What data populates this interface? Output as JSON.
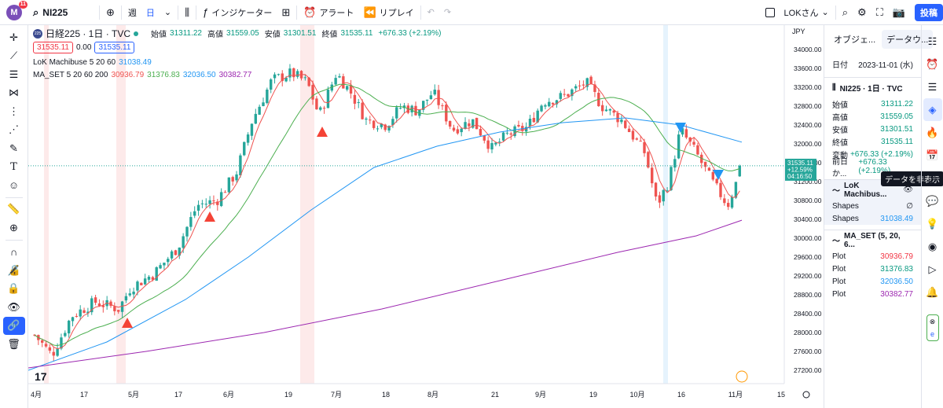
{
  "toolbar": {
    "logo_letter": "M",
    "notification_count": "11",
    "symbol": "NI225",
    "interval_week": "週",
    "interval_day": "日",
    "indicators_label": "インジケーター",
    "alert_label": "アラート",
    "replay_label": "リプレイ",
    "account_label": "LOKさん",
    "post_label": "投稿"
  },
  "legend": {
    "logo_text": "225",
    "title": "日経225 · 1日 · TVC",
    "open_label": "始値",
    "open": "31311.22",
    "high_label": "高値",
    "high": "31559.05",
    "low_label": "安値",
    "low": "31301.51",
    "close_label": "終値",
    "close": "31535.11",
    "change": "+676.33 (+2.19%)",
    "sell_price": "31535.11",
    "spread": "0.00",
    "buy_price": "31535.11",
    "ind1_name": "LoK Machibuse 5 20 60",
    "ind1_value": "31038.49",
    "ind2_name": "MA_SET 5 20 60 200",
    "ind2_v1": "30936.79",
    "ind2_v2": "31376.83",
    "ind2_v3": "32036.50",
    "ind2_v4": "30382.77"
  },
  "price_axis": {
    "currency": "JPY",
    "current_price": "31535.11",
    "current_change": "+12.59%",
    "countdown": "04:16:50"
  },
  "colors": {
    "up": "#26a69a",
    "down": "#ef5350",
    "ma5": "#ef5350",
    "ma20": "#4caf50",
    "ma60": "#2196f3",
    "ma200": "#9c27b0"
  },
  "chart_data": {
    "type": "candlestick",
    "title": "日経225 · 1日 · TVC",
    "ylim": [
      27000,
      34200
    ],
    "y_ticks": [
      "34000.00",
      "33600.00",
      "33200.00",
      "32800.00",
      "32400.00",
      "32000.00",
      "31600.00",
      "31200.00",
      "30800.00",
      "30400.00",
      "30000.00",
      "29600.00",
      "29200.00",
      "28800.00",
      "28400.00",
      "28000.00",
      "27600.00",
      "27200.00"
    ],
    "x_ticks": [
      "4月",
      "17",
      "5月",
      "17",
      "6月",
      "19",
      "7月",
      "18",
      "8月",
      "21",
      "9月",
      "19",
      "10月",
      "16",
      "11月",
      "15"
    ],
    "last_close": 31535.11,
    "series": [
      {
        "name": "LoK Machibuse",
        "value": 31038.49
      },
      {
        "name": "MA 5",
        "value": 30936.79
      },
      {
        "name": "MA 20",
        "value": 31376.83
      },
      {
        "name": "MA 60",
        "value": 32036.5
      },
      {
        "name": "MA 200",
        "value": 30382.77
      }
    ],
    "grid": false
  },
  "data_window": {
    "tab_objects": "オブジェ...",
    "tab_data": "データウ...",
    "date_label": "日付",
    "date_value": "2023-11-01 (水)",
    "symbol_line": "NI225 · 1日 · TVC",
    "rows": [
      {
        "label": "始値",
        "value": "31311.22"
      },
      {
        "label": "高値",
        "value": "31559.05"
      },
      {
        "label": "安値",
        "value": "31301.51"
      },
      {
        "label": "終値",
        "value": "31535.11"
      },
      {
        "label": "変動",
        "value": "+676.33 (+2.19%)"
      },
      {
        "label": "前日か...",
        "value": "+676.33 (+2.19%)"
      }
    ],
    "ind1_header": "LoK Machibus...",
    "ind1_rows": [
      {
        "label": "Shapes",
        "value": "∅"
      },
      {
        "label": "Shapes",
        "value": "31038.49"
      }
    ],
    "ind2_header": "MA_SET (5, 20, 6...",
    "ind2_rows": [
      {
        "label": "Plot",
        "value": "30936.79"
      },
      {
        "label": "Plot",
        "value": "31376.83"
      },
      {
        "label": "Plot",
        "value": "32036.50"
      },
      {
        "label": "Plot",
        "value": "30382.77"
      }
    ],
    "tooltip": "データを非表示"
  }
}
